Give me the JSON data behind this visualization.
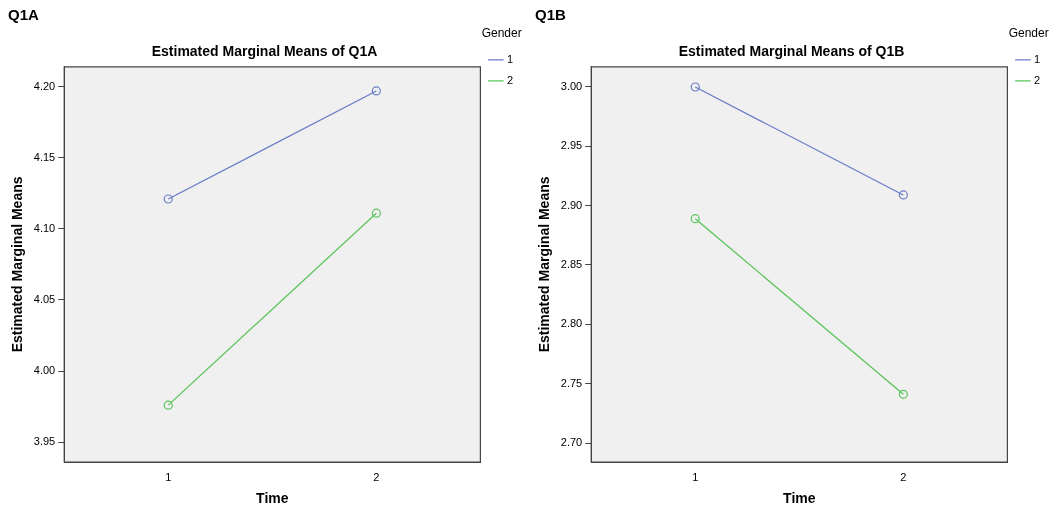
{
  "chart_data": [
    {
      "type": "line",
      "title": "Q1A",
      "subtitle": "Estimated Marginal Means of Q1A",
      "xlabel": "Time",
      "ylabel": "Estimated Marginal Means",
      "legend_title": "Gender",
      "categories": [
        "1",
        "2"
      ],
      "series": [
        {
          "name": "1",
          "color": "#6a7cc8",
          "values": [
            4.121,
            4.197
          ]
        },
        {
          "name": "2",
          "color": "#5cc45c",
          "values": [
            3.976,
            4.111
          ]
        }
      ],
      "ylim": [
        3.936,
        4.214
      ],
      "yticks": [
        {
          "value": 3.95,
          "label": "3.95"
        },
        {
          "value": 4,
          "label": "4.00"
        },
        {
          "value": 4.05,
          "label": "4.05"
        },
        {
          "value": 4.1,
          "label": "4.10"
        },
        {
          "value": 4.15,
          "label": "4.15"
        },
        {
          "value": 4.2,
          "label": "4.20"
        }
      ],
      "grid": false,
      "legend": "top right",
      "marker": "circle",
      "line_style": "solid"
    },
    {
      "type": "line",
      "title": "Q1B",
      "subtitle": "Estimated Marginal Means of Q1B",
      "xlabel": "Time",
      "ylabel": "Estimated Marginal Means",
      "legend_title": "Gender",
      "categories": [
        "1",
        "2"
      ],
      "series": [
        {
          "name": "1",
          "color": "#6a7cc8",
          "values": [
            3.0,
            2.909
          ]
        },
        {
          "name": "2",
          "color": "#5cc45c",
          "values": [
            2.889,
            2.741
          ]
        }
      ],
      "ylim": [
        2.684,
        3.017
      ],
      "yticks": [
        {
          "value": 2.7,
          "label": "2.70"
        },
        {
          "value": 2.75,
          "label": "2.75"
        },
        {
          "value": 2.8,
          "label": "2.80"
        },
        {
          "value": 2.85,
          "label": "2.85"
        },
        {
          "value": 2.9,
          "label": "2.90"
        },
        {
          "value": 2.95,
          "label": "2.95"
        },
        {
          "value": 3,
          "label": "3.00"
        }
      ],
      "grid": false,
      "legend": "top right",
      "marker": "circle",
      "line_style": "solid"
    }
  ]
}
